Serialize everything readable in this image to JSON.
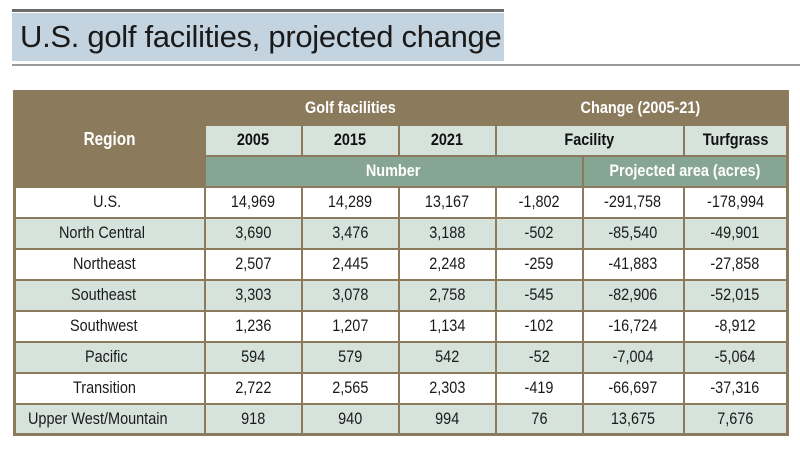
{
  "title": "U.S. golf facilities, projected change",
  "header": {
    "region": "Region",
    "golf_facilities": "Golf facilities",
    "change": "Change (2005-21)",
    "years": [
      "2005",
      "2015",
      "2021"
    ],
    "facility": "Facility",
    "turfgrass": "Turfgrass",
    "number": "Number",
    "projected_area": "Projected area (acres)"
  },
  "rows": [
    {
      "region": "U.S.",
      "y2005": "14,969",
      "y2015": "14,289",
      "y2021": "13,167",
      "facility_change": "-1,802",
      "facility_area": "-291,758",
      "turfgrass_area": "-178,994"
    },
    {
      "region": "North Central",
      "y2005": "3,690",
      "y2015": "3,476",
      "y2021": "3,188",
      "facility_change": "-502",
      "facility_area": "-85,540",
      "turfgrass_area": "-49,901"
    },
    {
      "region": "Northeast",
      "y2005": "2,507",
      "y2015": "2,445",
      "y2021": "2,248",
      "facility_change": "-259",
      "facility_area": "-41,883",
      "turfgrass_area": "-27,858"
    },
    {
      "region": "Southeast",
      "y2005": "3,303",
      "y2015": "3,078",
      "y2021": "2,758",
      "facility_change": "-545",
      "facility_area": "-82,906",
      "turfgrass_area": "-52,015"
    },
    {
      "region": "Southwest",
      "y2005": "1,236",
      "y2015": "1,207",
      "y2021": "1,134",
      "facility_change": "-102",
      "facility_area": "-16,724",
      "turfgrass_area": "-8,912"
    },
    {
      "region": "Pacific",
      "y2005": "594",
      "y2015": "579",
      "y2021": "542",
      "facility_change": "-52",
      "facility_area": "-7,004",
      "turfgrass_area": "-5,064"
    },
    {
      "region": "Transition",
      "y2005": "2,722",
      "y2015": "2,565",
      "y2021": "2,303",
      "facility_change": "-419",
      "facility_area": "-66,697",
      "turfgrass_area": "-37,316"
    },
    {
      "region": "Upper West/Mountain",
      "y2005": "918",
      "y2015": "940",
      "y2021": "994",
      "facility_change": "76",
      "facility_area": "13,675",
      "turfgrass_area": "7,676"
    }
  ],
  "colors": {
    "header_brown": "#8b7a5c",
    "header_light": "#d6e2dc",
    "header_green": "#86a693",
    "title_bg": "#c3d3df"
  }
}
